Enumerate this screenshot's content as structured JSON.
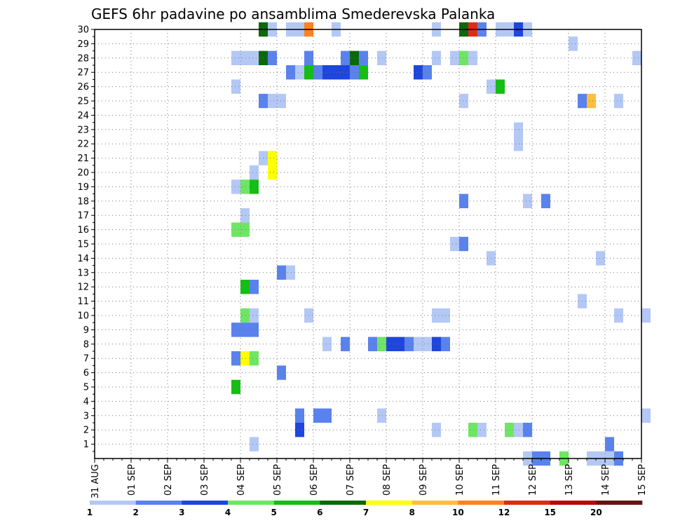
{
  "chart_data": {
    "type": "heatmap",
    "title": "GEFS 6hr padavine po ansamblima Smederevska Palanka",
    "xlabel": "",
    "ylabel": "",
    "x_tick_labels": [
      "31 AUG",
      "01 SEP",
      "02 SEP",
      "03 SEP",
      "04 SEP",
      "05 SEP",
      "06 SEP",
      "07 SEP",
      "08 SEP",
      "09 SEP",
      "10 SEP",
      "11 SEP",
      "12 SEP",
      "13 SEP",
      "14 SEP",
      "15 SEP"
    ],
    "x_range_days": [
      0,
      15
    ],
    "x_step_hours": 6,
    "y_tick_labels": [
      "1",
      "2",
      "3",
      "4",
      "5",
      "6",
      "7",
      "8",
      "9",
      "10",
      "11",
      "12",
      "13",
      "14",
      "15",
      "16",
      "17",
      "18",
      "19",
      "20",
      "21",
      "22",
      "23",
      "24",
      "25",
      "26",
      "27",
      "28",
      "29",
      "30"
    ],
    "y_range": [
      0,
      30
    ],
    "grid": true,
    "legend_position": "bottom",
    "legend": {
      "boundaries": [
        "1",
        "2",
        "3",
        "4",
        "5",
        "6",
        "7",
        "8",
        "10",
        "12",
        "15",
        "20"
      ],
      "colors": [
        "#b4c8f5",
        "#5a82ee",
        "#1e46dc",
        "#6ee664",
        "#14be14",
        "#0a690a",
        "#ffff00",
        "#ffbe3c",
        "#ff821e",
        "#dc2d14",
        "#b40a0a",
        "#641414"
      ]
    },
    "cells": [
      {
        "member": 30,
        "t": 18,
        "level": 6
      },
      {
        "member": 30,
        "t": 19,
        "level": 1
      },
      {
        "member": 30,
        "t": 21,
        "level": 1
      },
      {
        "member": 30,
        "t": 22,
        "level": 1
      },
      {
        "member": 30,
        "t": 23,
        "level": 9
      },
      {
        "member": 30,
        "t": 26,
        "level": 1
      },
      {
        "member": 30,
        "t": 37,
        "level": 1
      },
      {
        "member": 30,
        "t": 40,
        "level": 6
      },
      {
        "member": 30,
        "t": 41,
        "level": 10
      },
      {
        "member": 30,
        "t": 42,
        "level": 2
      },
      {
        "member": 30,
        "t": 44,
        "level": 1
      },
      {
        "member": 30,
        "t": 45,
        "level": 1
      },
      {
        "member": 30,
        "t": 46,
        "level": 3
      },
      {
        "member": 30,
        "t": 47,
        "level": 1
      },
      {
        "member": 29,
        "t": 52,
        "level": 1
      },
      {
        "member": 28,
        "t": 15,
        "level": 1
      },
      {
        "member": 28,
        "t": 16,
        "level": 1
      },
      {
        "member": 28,
        "t": 17,
        "level": 1
      },
      {
        "member": 28,
        "t": 18,
        "level": 6
      },
      {
        "member": 28,
        "t": 19,
        "level": 2
      },
      {
        "member": 28,
        "t": 23,
        "level": 2
      },
      {
        "member": 28,
        "t": 27,
        "level": 2
      },
      {
        "member": 28,
        "t": 28,
        "level": 6
      },
      {
        "member": 28,
        "t": 29,
        "level": 2
      },
      {
        "member": 28,
        "t": 31,
        "level": 1
      },
      {
        "member": 28,
        "t": 37,
        "level": 1
      },
      {
        "member": 28,
        "t": 39,
        "level": 1
      },
      {
        "member": 28,
        "t": 40,
        "level": 4
      },
      {
        "member": 28,
        "t": 41,
        "level": 1
      },
      {
        "member": 28,
        "t": 59,
        "level": 1
      },
      {
        "member": 27,
        "t": 21,
        "level": 2
      },
      {
        "member": 27,
        "t": 22,
        "level": 1
      },
      {
        "member": 27,
        "t": 23,
        "level": 5
      },
      {
        "member": 27,
        "t": 24,
        "level": 2
      },
      {
        "member": 27,
        "t": 25,
        "level": 3
      },
      {
        "member": 27,
        "t": 26,
        "level": 3
      },
      {
        "member": 27,
        "t": 27,
        "level": 3
      },
      {
        "member": 27,
        "t": 28,
        "level": 2
      },
      {
        "member": 27,
        "t": 29,
        "level": 5
      },
      {
        "member": 27,
        "t": 35,
        "level": 3
      },
      {
        "member": 27,
        "t": 36,
        "level": 2
      },
      {
        "member": 26,
        "t": 15,
        "level": 1
      },
      {
        "member": 26,
        "t": 43,
        "level": 1
      },
      {
        "member": 26,
        "t": 44,
        "level": 5
      },
      {
        "member": 25,
        "t": 18,
        "level": 2
      },
      {
        "member": 25,
        "t": 19,
        "level": 1
      },
      {
        "member": 25,
        "t": 20,
        "level": 1
      },
      {
        "member": 25,
        "t": 40,
        "level": 1
      },
      {
        "member": 25,
        "t": 53,
        "level": 2
      },
      {
        "member": 25,
        "t": 54,
        "level": 8
      },
      {
        "member": 25,
        "t": 57,
        "level": 1
      },
      {
        "member": 23,
        "t": 46,
        "level": 1
      },
      {
        "member": 22,
        "t": 46,
        "level": 1
      },
      {
        "member": 21,
        "t": 18,
        "level": 1
      },
      {
        "member": 21,
        "t": 19,
        "level": 7
      },
      {
        "member": 20,
        "t": 19,
        "level": 7
      },
      {
        "member": 20,
        "t": 17,
        "level": 1
      },
      {
        "member": 19,
        "t": 15,
        "level": 1
      },
      {
        "member": 19,
        "t": 16,
        "level": 4
      },
      {
        "member": 19,
        "t": 17,
        "level": 5
      },
      {
        "member": 18,
        "t": 40,
        "level": 2
      },
      {
        "member": 18,
        "t": 47,
        "level": 1
      },
      {
        "member": 18,
        "t": 49,
        "level": 2
      },
      {
        "member": 17,
        "t": 16,
        "level": 1
      },
      {
        "member": 16,
        "t": 15,
        "level": 4
      },
      {
        "member": 16,
        "t": 16,
        "level": 4
      },
      {
        "member": 15,
        "t": 39,
        "level": 1
      },
      {
        "member": 15,
        "t": 40,
        "level": 2
      },
      {
        "member": 14,
        "t": 43,
        "level": 1
      },
      {
        "member": 14,
        "t": 55,
        "level": 1
      },
      {
        "member": 13,
        "t": 20,
        "level": 2
      },
      {
        "member": 13,
        "t": 21,
        "level": 1
      },
      {
        "member": 12,
        "t": 16,
        "level": 5
      },
      {
        "member": 12,
        "t": 17,
        "level": 2
      },
      {
        "member": 11,
        "t": 53,
        "level": 1
      },
      {
        "member": 10,
        "t": 16,
        "level": 4
      },
      {
        "member": 10,
        "t": 17,
        "level": 1
      },
      {
        "member": 10,
        "t": 23,
        "level": 1
      },
      {
        "member": 10,
        "t": 37,
        "level": 1
      },
      {
        "member": 10,
        "t": 38,
        "level": 1
      },
      {
        "member": 10,
        "t": 57,
        "level": 1
      },
      {
        "member": 10,
        "t": 60,
        "level": 1
      },
      {
        "member": 9,
        "t": 15,
        "level": 2
      },
      {
        "member": 9,
        "t": 16,
        "level": 2
      },
      {
        "member": 9,
        "t": 17,
        "level": 2
      },
      {
        "member": 8,
        "t": 25,
        "level": 1
      },
      {
        "member": 8,
        "t": 27,
        "level": 2
      },
      {
        "member": 8,
        "t": 30,
        "level": 2
      },
      {
        "member": 8,
        "t": 31,
        "level": 4
      },
      {
        "member": 8,
        "t": 32,
        "level": 3
      },
      {
        "member": 8,
        "t": 33,
        "level": 3
      },
      {
        "member": 8,
        "t": 34,
        "level": 2
      },
      {
        "member": 8,
        "t": 35,
        "level": 1
      },
      {
        "member": 8,
        "t": 36,
        "level": 1
      },
      {
        "member": 8,
        "t": 37,
        "level": 3
      },
      {
        "member": 8,
        "t": 38,
        "level": 2
      },
      {
        "member": 7,
        "t": 15,
        "level": 2
      },
      {
        "member": 7,
        "t": 16,
        "level": 7
      },
      {
        "member": 7,
        "t": 17,
        "level": 4
      },
      {
        "member": 6,
        "t": 20,
        "level": 2
      },
      {
        "member": 5,
        "t": 15,
        "level": 5
      },
      {
        "member": 3,
        "t": 22,
        "level": 2
      },
      {
        "member": 3,
        "t": 24,
        "level": 2
      },
      {
        "member": 3,
        "t": 25,
        "level": 2
      },
      {
        "member": 3,
        "t": 31,
        "level": 1
      },
      {
        "member": 3,
        "t": 60,
        "level": 1
      },
      {
        "member": 2,
        "t": 22,
        "level": 3
      },
      {
        "member": 2,
        "t": 37,
        "level": 1
      },
      {
        "member": 2,
        "t": 41,
        "level": 4
      },
      {
        "member": 2,
        "t": 42,
        "level": 1
      },
      {
        "member": 2,
        "t": 45,
        "level": 4
      },
      {
        "member": 2,
        "t": 46,
        "level": 1
      },
      {
        "member": 2,
        "t": 47,
        "level": 2
      },
      {
        "member": 1,
        "t": 17,
        "level": 1
      },
      {
        "member": 1,
        "t": 56,
        "level": 2
      },
      {
        "member": 0,
        "t": 47,
        "level": 1
      },
      {
        "member": 0,
        "t": 48,
        "level": 2
      },
      {
        "member": 0,
        "t": 49,
        "level": 2
      },
      {
        "member": 0,
        "t": 51,
        "level": 4
      },
      {
        "member": 0,
        "t": 54,
        "level": 1
      },
      {
        "member": 0,
        "t": 55,
        "level": 1
      },
      {
        "member": 0,
        "t": 56,
        "level": 1
      },
      {
        "member": 0,
        "t": 57,
        "level": 2
      }
    ]
  }
}
